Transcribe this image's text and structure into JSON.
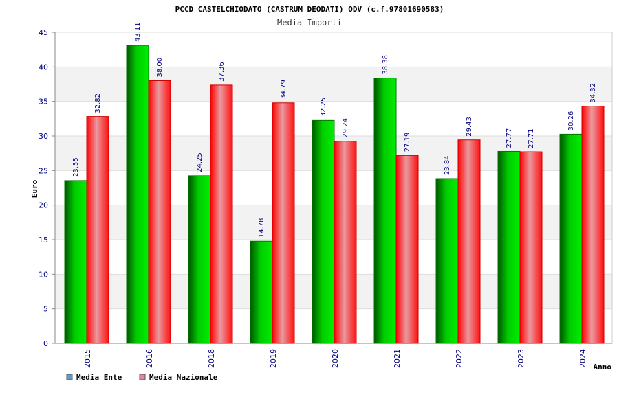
{
  "chart_data": {
    "type": "bar",
    "title": "PCCD CASTELCHIODATO (CASTRUM DEODATI) ODV (c.f.97801690583)",
    "subtitle": "Media Importi",
    "xlabel": "Anno",
    "ylabel": "Euro",
    "ylim": [
      0,
      45
    ],
    "yticks": [
      "0",
      "5",
      "10",
      "15",
      "20",
      "25",
      "30",
      "35",
      "40",
      "45"
    ],
    "categories": [
      "2015",
      "2016",
      "2018",
      "2019",
      "2020",
      "2021",
      "2022",
      "2023",
      "2024"
    ],
    "series": [
      {
        "name": "Media Ente",
        "values": [
          23.55,
          43.11,
          24.25,
          14.78,
          32.25,
          38.38,
          23.84,
          27.77,
          30.26
        ],
        "labels": [
          "23.55",
          "43.11",
          "24.25",
          "14.78",
          "32.25",
          "38.38",
          "23.84",
          "27.77",
          "30.26"
        ],
        "color": "#00aa00",
        "legend_color": "#5b9bd5"
      },
      {
        "name": "Media Nazionale",
        "values": [
          32.82,
          38.0,
          37.36,
          34.79,
          29.24,
          27.19,
          29.43,
          27.71,
          34.32
        ],
        "labels": [
          "32.82",
          "38.00",
          "37.36",
          "34.79",
          "29.24",
          "27.19",
          "29.43",
          "27.71",
          "34.32"
        ],
        "color": "#ee2222",
        "legend_color": "#dd88aa"
      }
    ],
    "grid": true,
    "legend_position": "bottom-left"
  }
}
